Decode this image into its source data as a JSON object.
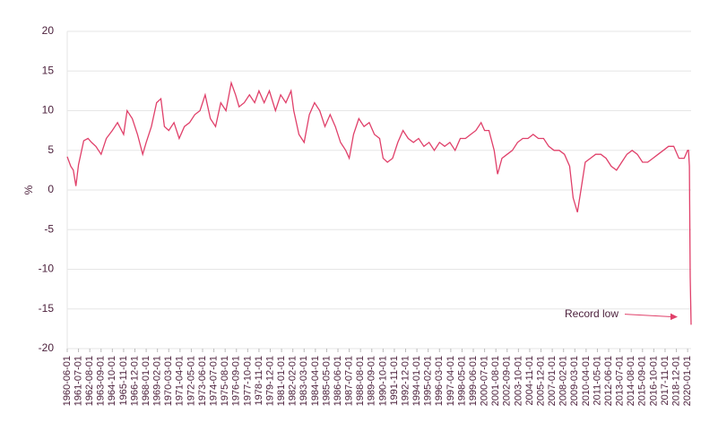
{
  "chart_data": {
    "type": "line",
    "y_label": "%",
    "annotation": "Record low",
    "color": "#e0406a",
    "grid": true,
    "ylim": [
      -20,
      20
    ],
    "yticks": [
      -20,
      -15,
      -10,
      -5,
      0,
      5,
      10,
      15,
      20
    ],
    "xlim": [
      "1960-06-01",
      "2020-05-01"
    ],
    "xticks": [
      "1960-06-01",
      "1961-07-01",
      "1962-08-01",
      "1963-09-01",
      "1964-10-01",
      "1965-11-01",
      "1966-12-01",
      "1968-01-01",
      "1969-02-01",
      "1970-03-01",
      "1971-04-01",
      "1972-05-01",
      "1973-06-01",
      "1974-07-01",
      "1975-08-01",
      "1976-09-01",
      "1977-10-01",
      "1978-11-01",
      "1979-12-01",
      "1981-01-01",
      "1982-02-01",
      "1983-03-01",
      "1984-04-01",
      "1985-05-01",
      "1986-06-01",
      "1987-07-01",
      "1988-08-01",
      "1989-09-01",
      "1990-10-01",
      "1991-11-01",
      "1992-12-01",
      "1994-01-01",
      "1995-02-01",
      "1996-03-01",
      "1997-04-01",
      "1998-05-01",
      "1999-06-01",
      "2000-07-01",
      "2001-08-01",
      "2002-09-01",
      "2003-10-01",
      "2004-11-01",
      "2005-12-01",
      "2007-01-01",
      "2008-02-01",
      "2009-03-01",
      "2010-04-01",
      "2011-05-01",
      "2012-06-01",
      "2013-07-01",
      "2014-08-01",
      "2015-09-01",
      "2016-10-01",
      "2017-11-01",
      "2018-12-01",
      "2020-01-01"
    ],
    "x": [
      "1960-06-01",
      "1960-10-01",
      "1961-01-01",
      "1961-04-01",
      "1961-07-01",
      "1962-01-01",
      "1962-06-01",
      "1962-10-01",
      "1963-03-01",
      "1963-09-01",
      "1964-03-01",
      "1964-10-01",
      "1965-04-01",
      "1965-11-01",
      "1966-03-01",
      "1966-09-01",
      "1967-03-01",
      "1967-09-01",
      "1968-01-01",
      "1968-07-01",
      "1969-01-01",
      "1969-06-01",
      "1969-10-01",
      "1970-03-01",
      "1970-09-01",
      "1971-03-01",
      "1971-09-01",
      "1972-03-01",
      "1972-09-01",
      "1973-03-01",
      "1973-09-01",
      "1974-03-01",
      "1974-09-01",
      "1975-03-01",
      "1975-09-01",
      "1976-03-01",
      "1976-08-01",
      "1976-12-01",
      "1977-06-01",
      "1977-12-01",
      "1978-06-01",
      "1978-11-01",
      "1979-05-01",
      "1979-11-01",
      "1980-06-01",
      "1980-12-01",
      "1981-06-01",
      "1981-12-01",
      "1982-03-01",
      "1982-09-01",
      "1983-03-01",
      "1983-09-01",
      "1984-03-01",
      "1984-09-01",
      "1985-03-01",
      "1985-09-01",
      "1986-03-01",
      "1986-09-01",
      "1987-03-01",
      "1987-07-01",
      "1987-12-01",
      "1988-06-01",
      "1988-12-01",
      "1989-06-01",
      "1989-12-01",
      "1990-06-01",
      "1990-10-01",
      "1991-03-01",
      "1991-09-01",
      "1992-03-01",
      "1992-09-01",
      "1993-03-01",
      "1993-09-01",
      "1994-03-01",
      "1994-09-01",
      "1995-03-01",
      "1995-09-01",
      "1996-03-01",
      "1996-09-01",
      "1997-03-01",
      "1997-09-01",
      "1998-03-01",
      "1998-09-01",
      "1999-03-01",
      "1999-09-01",
      "2000-03-01",
      "2000-07-01",
      "2000-12-01",
      "2001-06-01",
      "2001-10-01",
      "2002-03-01",
      "2002-09-01",
      "2003-03-01",
      "2003-09-01",
      "2004-03-01",
      "2004-09-01",
      "2005-03-01",
      "2005-09-01",
      "2006-03-01",
      "2006-09-01",
      "2007-03-01",
      "2007-09-01",
      "2008-03-01",
      "2008-09-01",
      "2009-01-01",
      "2009-06-01",
      "2009-10-01",
      "2010-03-01",
      "2010-09-01",
      "2011-03-01",
      "2011-09-01",
      "2012-03-01",
      "2012-09-01",
      "2013-03-01",
      "2013-09-01",
      "2014-03-01",
      "2014-09-01",
      "2015-03-01",
      "2015-09-01",
      "2016-03-01",
      "2016-09-01",
      "2017-03-01",
      "2017-09-01",
      "2018-03-01",
      "2018-09-01",
      "2019-03-01",
      "2019-09-01",
      "2020-01-01",
      "2020-02-01",
      "2020-03-01",
      "2020-04-01",
      "2020-05-01"
    ],
    "values": [
      4.2,
      3,
      2.5,
      0.5,
      3.2,
      6.2,
      6.5,
      6,
      5.5,
      4.5,
      6.5,
      7.5,
      8.5,
      7,
      10,
      9,
      7,
      4.5,
      6,
      8,
      11,
      11.5,
      8,
      7.5,
      8.5,
      6.5,
      8,
      8.5,
      9.5,
      10,
      12,
      9,
      8,
      11,
      10,
      13.5,
      12,
      10.5,
      11,
      12,
      11,
      12.5,
      11,
      12.5,
      10,
      12,
      11,
      12.5,
      10,
      7,
      6,
      9.5,
      11,
      10,
      8,
      9.5,
      8,
      6,
      5,
      4,
      7,
      9,
      8,
      8.5,
      7,
      6.5,
      4,
      3.5,
      4,
      6,
      7.5,
      6.5,
      6,
      6.5,
      5.5,
      6,
      5,
      6,
      5.5,
      6,
      5,
      6.5,
      6.5,
      7,
      7.5,
      8.5,
      7.5,
      7.5,
      5,
      2,
      4,
      4.5,
      5,
      6,
      6.5,
      6.5,
      7,
      6.5,
      6.5,
      5.5,
      5,
      5,
      4.5,
      3,
      -1,
      -2.8,
      0,
      3.5,
      4,
      4.5,
      4.5,
      4,
      3,
      2.5,
      3.5,
      4.5,
      5,
      4.5,
      3.5,
      3.5,
      4,
      4.5,
      5,
      5.5,
      5.5,
      4,
      4,
      5,
      5,
      3,
      -11,
      -17
    ]
  }
}
